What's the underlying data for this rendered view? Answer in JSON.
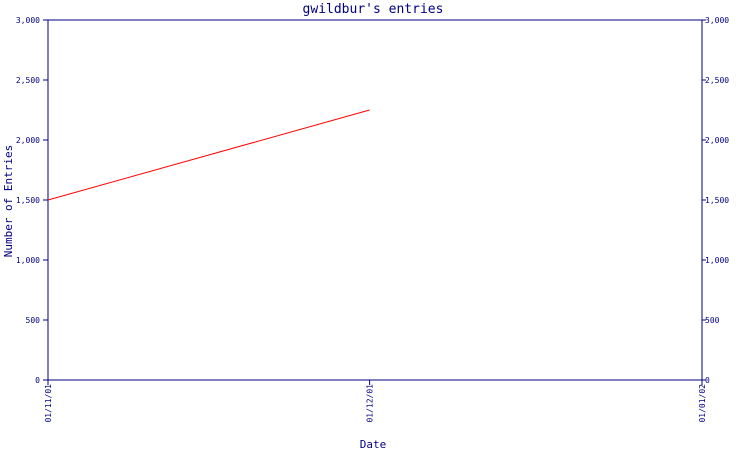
{
  "chart_data": {
    "type": "line",
    "title": "gwildbur's entries",
    "xlabel": "Date",
    "ylabel": "Number of Entries",
    "x_ticks": [
      "01/11/01",
      "01/12/01",
      "01/01/02"
    ],
    "y_ticks": [
      "0",
      "500",
      "1,000",
      "1,500",
      "2,000",
      "2,500",
      "3,000"
    ],
    "y_ticks_right": [
      "0",
      "500",
      "1,000",
      "1,500",
      "2,000",
      "2,500",
      "3,000"
    ],
    "ylim": [
      0,
      3000
    ],
    "xlim": [
      "01/11/01",
      "01/01/02"
    ],
    "grid": false,
    "series": [
      {
        "color": "#ff0000",
        "x": [
          "01/11/01",
          "01/12/01"
        ],
        "y": [
          1500,
          2250
        ]
      }
    ]
  },
  "colors": {
    "axis": "#000080",
    "line": "#ff0000",
    "background": "#ffffff"
  }
}
